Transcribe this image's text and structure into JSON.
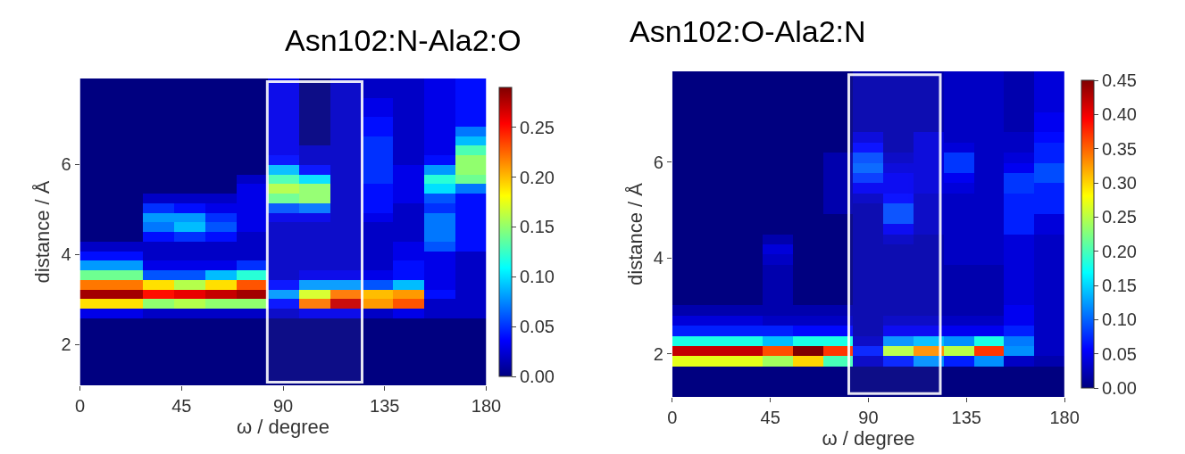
{
  "chart_data": [
    {
      "type": "heatmap",
      "title": "Asn102:N-Ala2:O",
      "xlabel": "ω / degree",
      "ylabel": "distance / Å",
      "xlim": [
        0,
        180
      ],
      "xticks": [
        0,
        45,
        90,
        135,
        180
      ],
      "ylim": [
        1.1,
        7.9
      ],
      "yticks": [
        2,
        4,
        6
      ],
      "clim": [
        0,
        0.29
      ],
      "cticks": [
        {
          "value": 0,
          "label": "0.00"
        },
        0.05,
        {
          "value": 0.1,
          "label": "0.10"
        },
        0.15,
        {
          "value": 0.2,
          "label": "0.20"
        },
        0.25
      ],
      "bands": [
        {
          "axis": "x",
          "from": 83,
          "to": 125,
          "color": "#ffffff"
        }
      ],
      "cells": [
        [
          0,
          0,
          0,
          0,
          0,
          0,
          0.03,
          0,
          0.02,
          0.02,
          0.02,
          0.03,
          0.04
        ],
        [
          0,
          0,
          0,
          0,
          0,
          0,
          0.03,
          0,
          0.02,
          0.02,
          0.02,
          0.03,
          0.04
        ],
        [
          0,
          0,
          0,
          0,
          0,
          0,
          0.03,
          0,
          0.02,
          0.03,
          0.02,
          0.03,
          0.04
        ],
        [
          0,
          0,
          0,
          0,
          0,
          0,
          0.03,
          0,
          0.02,
          0.03,
          0.02,
          0.03,
          0.04
        ],
        [
          0,
          0,
          0,
          0,
          0,
          0,
          0.03,
          0,
          0.02,
          0.04,
          0.02,
          0.03,
          0.04
        ],
        [
          0,
          0,
          0,
          0,
          0,
          0,
          0.03,
          0,
          0.02,
          0.04,
          0.02,
          0.03,
          0.07
        ],
        [
          0,
          0,
          0,
          0,
          0,
          0,
          0.03,
          0,
          0.02,
          0.05,
          0.02,
          0.03,
          0.09
        ],
        [
          0,
          0,
          0,
          0,
          0,
          0,
          0.03,
          0.02,
          0.02,
          0.05,
          0.02,
          0.03,
          0.13
        ],
        [
          0,
          0,
          0,
          0,
          0,
          0,
          0.04,
          0.02,
          0.02,
          0.05,
          0.02,
          0.04,
          0.15
        ],
        [
          0,
          0,
          0,
          0,
          0,
          0,
          0.09,
          0.04,
          0.02,
          0.05,
          0.03,
          0.08,
          0.15
        ],
        [
          0,
          0,
          0,
          0,
          0,
          0.02,
          0.13,
          0.1,
          0.02,
          0.05,
          0.03,
          0.12,
          0.14
        ],
        [
          0,
          0,
          0,
          0,
          0,
          0.03,
          0.16,
          0.15,
          0.02,
          0.04,
          0.03,
          0.1,
          0.07
        ],
        [
          0,
          0,
          0.02,
          0.02,
          0.02,
          0.03,
          0.14,
          0.15,
          0.02,
          0.04,
          0.03,
          0.06,
          0.04
        ],
        [
          0,
          0,
          0.05,
          0.04,
          0.03,
          0.03,
          0.06,
          0.07,
          0.02,
          0.04,
          0.02,
          0.05,
          0.04
        ],
        [
          0,
          0,
          0.08,
          0.08,
          0.05,
          0.03,
          0.03,
          0.03,
          0.02,
          0.03,
          0.02,
          0.07,
          0.04
        ],
        [
          0,
          0,
          0.07,
          0.09,
          0.06,
          0.03,
          0.02,
          0.02,
          0.02,
          0.02,
          0.02,
          0.07,
          0.04
        ],
        [
          0,
          0,
          0.04,
          0.05,
          0.04,
          0.02,
          0.02,
          0.02,
          0.02,
          0.02,
          0.02,
          0.07,
          0.04
        ],
        [
          0.02,
          0.02,
          0.02,
          0.02,
          0.02,
          0.02,
          0.02,
          0.02,
          0.02,
          0.02,
          0.03,
          0.06,
          0.04
        ],
        [
          0.04,
          0.04,
          0.02,
          0.02,
          0.02,
          0.02,
          0.02,
          0.02,
          0.02,
          0.02,
          0.03,
          0.03,
          0.02
        ],
        [
          0.08,
          0.08,
          0.03,
          0.03,
          0.03,
          0.05,
          0.02,
          0.02,
          0.02,
          0.02,
          0.04,
          0.03,
          0.02
        ],
        [
          0.14,
          0.14,
          0.06,
          0.06,
          0.09,
          0.12,
          0.02,
          0.03,
          0.03,
          0.03,
          0.04,
          0.03,
          0.02
        ],
        [
          0.22,
          0.22,
          0.19,
          0.16,
          0.19,
          0.23,
          0.04,
          0.08,
          0.08,
          0.06,
          0.09,
          0.03,
          0.02
        ],
        [
          0.28,
          0.28,
          0.25,
          0.26,
          0.27,
          0.28,
          0.08,
          0.17,
          0.22,
          0.2,
          0.21,
          0.04,
          0.02
        ],
        [
          0.19,
          0.19,
          0.15,
          0.16,
          0.15,
          0.15,
          0.04,
          0.22,
          0.27,
          0.21,
          0.23,
          0.02,
          0.02
        ],
        [
          0.03,
          0.03,
          0.02,
          0.02,
          0.02,
          0.02,
          0.02,
          0.03,
          0.03,
          0.02,
          0.03,
          0.02,
          0.02
        ],
        [
          0,
          0,
          0,
          0,
          0,
          0,
          0,
          0,
          0,
          0,
          0,
          0,
          0
        ],
        [
          0,
          0,
          0,
          0,
          0,
          0,
          0,
          0,
          0,
          0,
          0,
          0,
          0
        ],
        [
          0,
          0,
          0,
          0,
          0,
          0,
          0,
          0,
          0,
          0,
          0,
          0,
          0
        ],
        [
          0,
          0,
          0,
          0,
          0,
          0,
          0,
          0,
          0,
          0,
          0,
          0,
          0
        ],
        [
          0,
          0,
          0,
          0,
          0,
          0,
          0,
          0,
          0,
          0,
          0,
          0,
          0
        ],
        [
          0,
          0,
          0,
          0,
          0,
          0,
          0,
          0,
          0,
          0,
          0,
          0,
          0
        ],
        [
          0,
          0,
          0,
          0,
          0,
          0,
          0,
          0,
          0,
          0,
          0,
          0,
          0
        ]
      ]
    },
    {
      "type": "heatmap",
      "title": "Asn102:O-Ala2:N",
      "xlabel": "ω / degree",
      "ylabel": "distance / Å",
      "xlim": [
        0,
        180
      ],
      "xticks": [
        0,
        45,
        90,
        135,
        180
      ],
      "ylim": [
        1.1,
        7.9
      ],
      "yticks": [
        2,
        4,
        6
      ],
      "clim": [
        0,
        0.45
      ],
      "cticks": [
        {
          "value": 0,
          "label": "0.00"
        },
        0.05,
        {
          "value": 0.1,
          "label": "0.10"
        },
        0.15,
        {
          "value": 0.2,
          "label": "0.20"
        },
        0.25,
        {
          "value": 0.3,
          "label": "0.30"
        },
        0.35,
        {
          "value": 0.4,
          "label": "0.40"
        },
        0.45
      ],
      "bands": [
        {
          "axis": "x",
          "from": 81,
          "to": 123,
          "color": "#ffffff"
        }
      ],
      "cells": [
        [
          0,
          0,
          0,
          0,
          0,
          0,
          0.02,
          0.02,
          0.02,
          0.03,
          0.03,
          0.02,
          0.04
        ],
        [
          0,
          0,
          0,
          0,
          0,
          0,
          0.02,
          0.02,
          0.02,
          0.03,
          0.03,
          0.02,
          0.04
        ],
        [
          0,
          0,
          0,
          0,
          0,
          0,
          0.02,
          0.02,
          0.02,
          0.03,
          0.03,
          0.02,
          0.04
        ],
        [
          0,
          0,
          0,
          0,
          0,
          0,
          0.02,
          0.02,
          0.02,
          0.03,
          0.03,
          0.02,
          0.04
        ],
        [
          0,
          0,
          0,
          0,
          0,
          0,
          0.02,
          0.02,
          0.02,
          0.03,
          0.03,
          0.02,
          0.05
        ],
        [
          0,
          0,
          0,
          0,
          0,
          0,
          0.02,
          0.02,
          0.02,
          0.03,
          0.03,
          0.02,
          0.05
        ],
        [
          0,
          0,
          0,
          0,
          0,
          0,
          0.04,
          0.02,
          0.04,
          0.03,
          0.03,
          0.03,
          0.06
        ],
        [
          0,
          0,
          0,
          0,
          0,
          0,
          0.06,
          0.02,
          0.04,
          0.04,
          0.03,
          0.03,
          0.07
        ],
        [
          0,
          0,
          0,
          0,
          0,
          0.02,
          0.09,
          0.03,
          0.04,
          0.08,
          0.03,
          0.04,
          0.07
        ],
        [
          0,
          0,
          0,
          0,
          0,
          0.02,
          0.1,
          0.04,
          0.04,
          0.08,
          0.03,
          0.05,
          0.09
        ],
        [
          0,
          0,
          0,
          0,
          0,
          0.02,
          0.08,
          0.05,
          0.04,
          0.05,
          0.03,
          0.08,
          0.09
        ],
        [
          0,
          0,
          0,
          0,
          0,
          0.02,
          0.05,
          0.05,
          0.04,
          0.04,
          0.03,
          0.08,
          0.07
        ],
        [
          0,
          0,
          0,
          0,
          0,
          0.02,
          0.03,
          0.06,
          0.03,
          0.03,
          0.03,
          0.07,
          0.07
        ],
        [
          0,
          0,
          0,
          0,
          0,
          0.02,
          0.02,
          0.09,
          0.03,
          0.03,
          0.03,
          0.07,
          0.07
        ],
        [
          0,
          0,
          0,
          0,
          0,
          0,
          0.02,
          0.09,
          0.03,
          0.03,
          0.03,
          0.07,
          0.04
        ],
        [
          0,
          0,
          0,
          0,
          0,
          0,
          0.02,
          0.05,
          0.03,
          0.03,
          0.03,
          0.07,
          0.04
        ],
        [
          0,
          0,
          0,
          0.02,
          0,
          0,
          0.02,
          0.03,
          0.02,
          0.03,
          0.03,
          0.04,
          0.03
        ],
        [
          0,
          0,
          0,
          0.04,
          0,
          0,
          0.02,
          0.02,
          0.02,
          0.03,
          0.03,
          0.04,
          0.03
        ],
        [
          0,
          0,
          0,
          0.03,
          0,
          0,
          0.02,
          0.02,
          0.02,
          0.03,
          0.03,
          0.04,
          0.03
        ],
        [
          0,
          0,
          0,
          0.02,
          0,
          0,
          0.02,
          0.02,
          0.02,
          0.02,
          0.02,
          0.04,
          0.03
        ],
        [
          0,
          0,
          0,
          0.02,
          0,
          0,
          0.02,
          0.02,
          0.02,
          0.02,
          0.02,
          0.04,
          0.03
        ],
        [
          0,
          0,
          0,
          0.02,
          0,
          0,
          0.02,
          0.02,
          0.02,
          0.02,
          0.02,
          0.04,
          0.03
        ],
        [
          0,
          0,
          0,
          0.02,
          0,
          0,
          0.02,
          0.02,
          0.02,
          0.02,
          0.02,
          0.04,
          0.03
        ],
        [
          0.02,
          0.02,
          0.02,
          0.02,
          0.02,
          0.02,
          0.02,
          0.02,
          0.02,
          0.02,
          0.02,
          0.05,
          0.03
        ],
        [
          0.04,
          0.04,
          0.04,
          0.03,
          0.03,
          0.03,
          0.02,
          0.03,
          0.03,
          0.03,
          0.03,
          0.05,
          0.03
        ],
        [
          0.07,
          0.07,
          0.07,
          0.07,
          0.06,
          0.06,
          0.02,
          0.05,
          0.05,
          0.05,
          0.05,
          0.07,
          0.03
        ],
        [
          0.18,
          0.18,
          0.18,
          0.14,
          0.18,
          0.18,
          0.03,
          0.12,
          0.14,
          0.12,
          0.18,
          0.11,
          0.03
        ],
        [
          0.42,
          0.42,
          0.42,
          0.36,
          0.45,
          0.37,
          0.07,
          0.25,
          0.33,
          0.25,
          0.37,
          0.12,
          0.03
        ],
        [
          0.27,
          0.27,
          0.27,
          0.24,
          0.3,
          0.2,
          0.03,
          0.07,
          0.12,
          0.07,
          0.12,
          0.03,
          0.02
        ],
        [
          0,
          0,
          0,
          0,
          0,
          0,
          0,
          0,
          0,
          0,
          0,
          0,
          0
        ],
        [
          0,
          0,
          0,
          0,
          0,
          0,
          0,
          0,
          0,
          0,
          0,
          0,
          0
        ],
        [
          0,
          0,
          0,
          0,
          0,
          0,
          0,
          0,
          0,
          0,
          0,
          0,
          0
        ]
      ]
    }
  ]
}
